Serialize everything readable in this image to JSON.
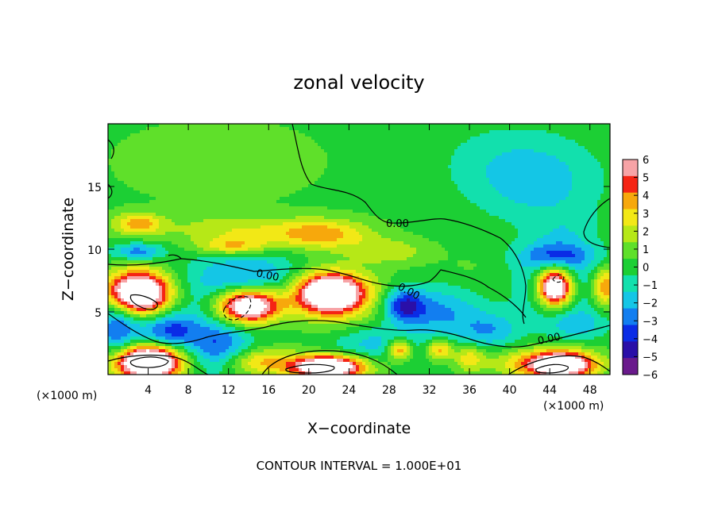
{
  "chart_data": {
    "type": "heatmap",
    "title": "zonal velocity",
    "xlabel": "X−coordinate",
    "ylabel": "Z−coordinate",
    "x_unit": "(×1000 m)",
    "x_unit_right": "(×1000 m)",
    "xlim": [
      0,
      50
    ],
    "ylim": [
      0,
      20
    ],
    "x_ticks": [
      4,
      8,
      12,
      16,
      20,
      24,
      28,
      32,
      36,
      40,
      44,
      48
    ],
    "y_ticks": [
      5,
      10,
      15
    ],
    "grid": false,
    "colorbar": {
      "range": [
        -6,
        6
      ],
      "ticks": [
        "6",
        "5",
        "4",
        "3",
        "2",
        "1",
        "0",
        "−1",
        "−2",
        "−3",
        "−4",
        "−5",
        "−6"
      ],
      "colors": [
        "#6a1a8c",
        "#2a0fa8",
        "#0a2ce6",
        "#127ef0",
        "#14c6e6",
        "#12e0ad",
        "#1ccf34",
        "#5fe02a",
        "#b6e817",
        "#f2e816",
        "#f7a80c",
        "#f52414",
        "#f7a3a6"
      ]
    },
    "contour_label": "0.00",
    "contour_interval_text": "CONTOUR INTERVAL = 1.000E+01",
    "field_features": [
      {
        "kind": "background",
        "value": 0.2
      },
      {
        "kind": "blob",
        "x": 11,
        "z": 17,
        "sx": 11,
        "sz": 3.5,
        "value": 0.8
      },
      {
        "kind": "blob",
        "x": 43,
        "z": 15,
        "sx": 6,
        "sz": 3,
        "value": -1.8
      },
      {
        "kind": "blob",
        "x": 40,
        "z": 17,
        "sx": 7,
        "sz": 3,
        "value": -1.2
      },
      {
        "kind": "blob",
        "x": 3,
        "z": 12,
        "sx": 2.5,
        "sz": 0.9,
        "value": 3.8
      },
      {
        "kind": "blob",
        "x": 12,
        "z": 11.5,
        "sx": 6,
        "sz": 1.2,
        "value": 2.2
      },
      {
        "kind": "blob",
        "x": 21,
        "z": 11.2,
        "sx": 5,
        "sz": 1.2,
        "value": 4.0
      },
      {
        "kind": "blob",
        "x": 12.5,
        "z": 10.2,
        "sx": 3.5,
        "sz": 0.7,
        "value": 3.5
      },
      {
        "kind": "blob",
        "x": 28,
        "z": 9.8,
        "sx": 4,
        "sz": 1.0,
        "value": 2.0
      },
      {
        "kind": "blob",
        "x": 3,
        "z": 9.8,
        "sx": 2.5,
        "sz": 0.7,
        "value": -3.2
      },
      {
        "kind": "blob",
        "x": 3,
        "z": 6.5,
        "sx": 3.2,
        "sz": 1.7,
        "value": 11
      },
      {
        "kind": "blob",
        "x": 14,
        "z": 5.5,
        "sx": 3.4,
        "sz": 1.5,
        "value": 12
      },
      {
        "kind": "blob",
        "x": 14,
        "z": 6.5,
        "sx": 6,
        "sz": 3,
        "value": -4.5
      },
      {
        "kind": "blob",
        "x": 22,
        "z": 6.5,
        "sx": 3.6,
        "sz": 1.6,
        "value": 10
      },
      {
        "kind": "blob",
        "x": 22,
        "z": 5,
        "sx": 6,
        "sz": 3.5,
        "value": 1.5
      },
      {
        "kind": "blob",
        "x": 29.5,
        "z": 5.5,
        "sx": 2,
        "sz": 1.3,
        "value": -4.5
      },
      {
        "kind": "blob",
        "x": 33,
        "z": 5,
        "sx": 4,
        "sz": 2,
        "value": -2.8
      },
      {
        "kind": "blob",
        "x": 38,
        "z": 3.5,
        "sx": 3,
        "sz": 1.5,
        "value": -2.5
      },
      {
        "kind": "blob",
        "x": 44.5,
        "z": 7,
        "sx": 1.8,
        "sz": 1.6,
        "value": 12
      },
      {
        "kind": "blob",
        "x": 44.5,
        "z": 7.5,
        "sx": 3.5,
        "sz": 3,
        "value": -3.5
      },
      {
        "kind": "blob",
        "x": 49.5,
        "z": 7,
        "sx": 1.2,
        "sz": 1.5,
        "value": 4.5
      },
      {
        "kind": "blob",
        "x": 47,
        "z": 4,
        "sx": 3,
        "sz": 1.2,
        "value": -2
      },
      {
        "kind": "blob",
        "x": 1,
        "z": 4,
        "sx": 2,
        "sz": 2.5,
        "value": -4
      },
      {
        "kind": "blob",
        "x": 6,
        "z": 3.5,
        "sx": 3,
        "sz": 1.5,
        "value": -4
      },
      {
        "kind": "blob",
        "x": 11,
        "z": 2,
        "sx": 3,
        "sz": 2,
        "value": -3.5
      },
      {
        "kind": "blob",
        "x": 26,
        "z": 2.5,
        "sx": 5,
        "sz": 1.5,
        "value": -2.5
      },
      {
        "kind": "blob",
        "x": 4,
        "z": 1,
        "sx": 3.2,
        "sz": 1.3,
        "value": 12
      },
      {
        "kind": "blob",
        "x": 15,
        "z": 1,
        "sx": 4,
        "sz": 1.1,
        "value": 3.5
      },
      {
        "kind": "blob",
        "x": 22,
        "z": 0.6,
        "sx": 3.5,
        "sz": 0.9,
        "value": 10
      },
      {
        "kind": "blob",
        "x": 29,
        "z": 2,
        "sx": 1.2,
        "sz": 0.8,
        "value": 5
      },
      {
        "kind": "blob",
        "x": 33,
        "z": 2,
        "sx": 1.3,
        "sz": 0.8,
        "value": 4
      },
      {
        "kind": "blob",
        "x": 36,
        "z": 1.3,
        "sx": 1.5,
        "sz": 1.0,
        "value": 3
      },
      {
        "kind": "blob",
        "x": 45,
        "z": 0.8,
        "sx": 3.5,
        "sz": 1.1,
        "value": 10
      },
      {
        "kind": "blob",
        "x": 40,
        "z": 1,
        "sx": 3,
        "sz": 1.2,
        "value": 1.5
      },
      {
        "kind": "blob",
        "x": 45,
        "z": 9.5,
        "sx": 4,
        "sz": 1.0,
        "value": -2.5
      },
      {
        "kind": "blob",
        "x": 46,
        "z": 11.5,
        "sx": 3,
        "sz": 1.5,
        "value": -0.8
      },
      {
        "kind": "blob",
        "x": 36,
        "z": 8.5,
        "sx": 3,
        "sz": 1.2,
        "value": 0.4
      }
    ]
  }
}
